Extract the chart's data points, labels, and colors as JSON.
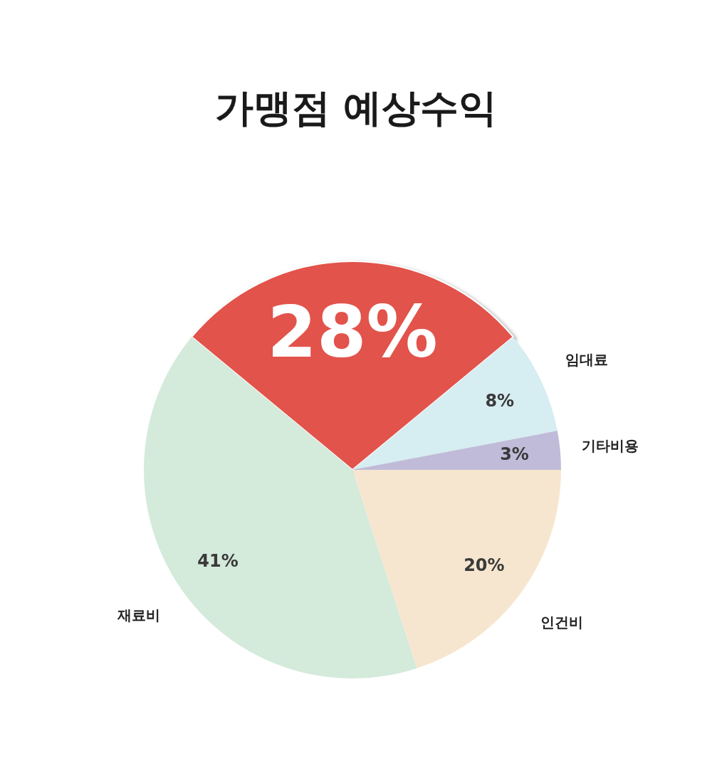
{
  "chart_data": {
    "type": "pie",
    "title": "가맹점 예상수익",
    "categories": [
      null,
      "임대료",
      "기타비용",
      "인건비",
      "재료비"
    ],
    "values": [
      28,
      8,
      3,
      20,
      41
    ],
    "colors": [
      "#e2534b",
      "#d6edf1",
      "#c0bbd8",
      "#f7e6cf",
      "#d4eadb"
    ],
    "value_labels": [
      "28%",
      "8%",
      "3%",
      "20%",
      "41%"
    ]
  }
}
